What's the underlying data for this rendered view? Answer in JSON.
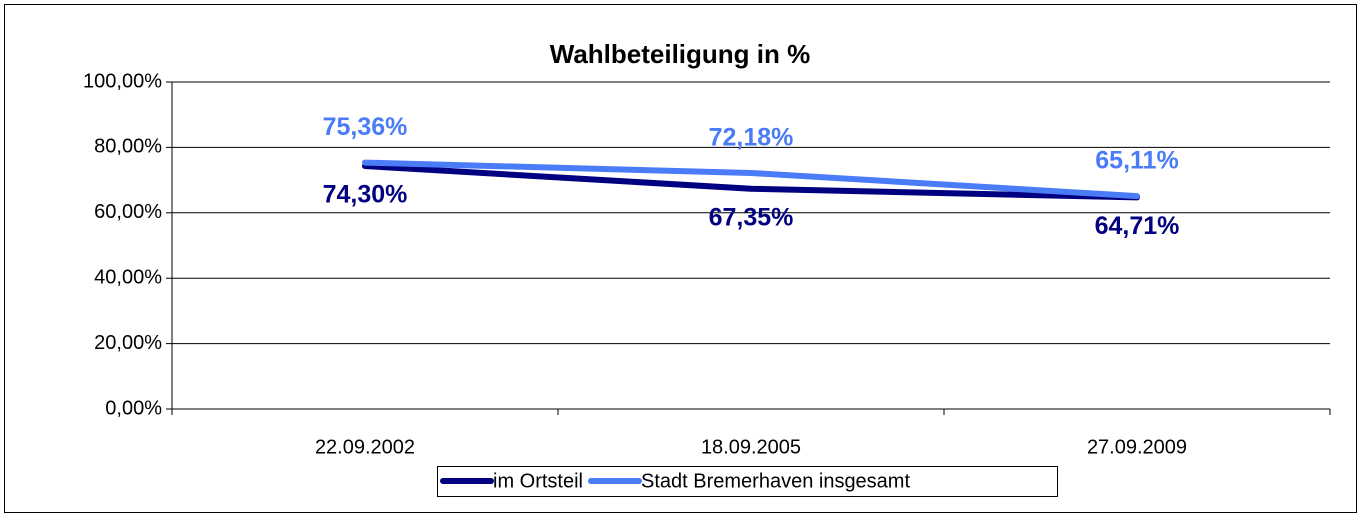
{
  "chart_data": {
    "type": "line",
    "title": "Wahlbeteiligung in %",
    "categories": [
      "22.09.2002",
      "18.09.2005",
      "27.09.2009"
    ],
    "series": [
      {
        "name": "im Ortsteil",
        "color": "#000080",
        "values": [
          74.3,
          67.35,
          64.71
        ],
        "value_labels": [
          "74,30%",
          "67,35%",
          "64,71%"
        ]
      },
      {
        "name": "Stadt Bremerhaven insgesamt",
        "color": "#4a7cf7",
        "values": [
          75.36,
          72.18,
          65.11
        ],
        "value_labels": [
          "75,36%",
          "72,18%",
          "65,11%"
        ]
      }
    ],
    "ylim": [
      0,
      100
    ],
    "yticks": [
      {
        "value": 0,
        "label": "0,00%"
      },
      {
        "value": 20,
        "label": "20,00%"
      },
      {
        "value": 40,
        "label": "40,00%"
      },
      {
        "value": 60,
        "label": "60,00%"
      },
      {
        "value": 80,
        "label": "80,00%"
      },
      {
        "value": 100,
        "label": "100,00%"
      }
    ],
    "grid": true,
    "legend": "bottom"
  }
}
